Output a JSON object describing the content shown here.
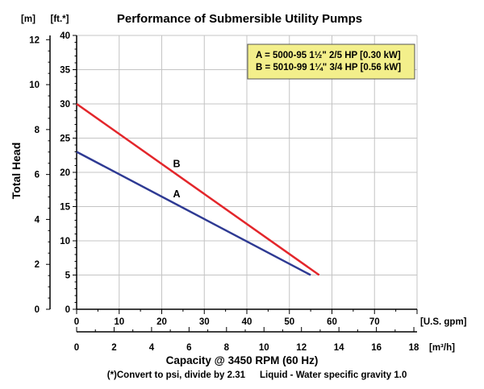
{
  "chart_data": {
    "type": "line",
    "title": "Performance of Submersible Utility Pumps",
    "ylabel": "Total Head",
    "xlabel": "Capacity @ 3450 RPM (60 Hz)",
    "y_unit": "[ft.*]",
    "y2_unit": "[m]",
    "x_unit": "[U.S. gpm]",
    "x2_unit": "[m³/h]",
    "xlim": [
      0,
      80
    ],
    "ylim": [
      0,
      40
    ],
    "x2lim": [
      0,
      18.17
    ],
    "y2lim": [
      0,
      12.19
    ],
    "x_ticks": [
      0,
      10,
      20,
      30,
      40,
      50,
      60,
      70
    ],
    "y_ticks": [
      0,
      5,
      10,
      15,
      20,
      25,
      30,
      35,
      40
    ],
    "x2_ticks": [
      0,
      2,
      4,
      6,
      8,
      10,
      12,
      14,
      16,
      18
    ],
    "y2_ticks": [
      0,
      2,
      4,
      6,
      8,
      10,
      12
    ],
    "grid": true,
    "grid_color": "#c4c4c4",
    "series": [
      {
        "name": "A",
        "color": "#2e3a93",
        "x": [
          0,
          55
        ],
        "y": [
          23,
          5
        ]
      },
      {
        "name": "B",
        "color": "#e3262b",
        "x": [
          0,
          57
        ],
        "y": [
          30,
          5
        ]
      }
    ],
    "legend": {
      "position": "top-right",
      "background": "#f3ef8b",
      "entries": [
        "A = 5000-95 1½\" 2/5 HP [0.30 kW]",
        "B = 5010-99 1¼\" 3/4 HP [0.56 kW]"
      ]
    },
    "footnote": [
      "(*)Convert to psi, divide by 2.31",
      "Liquid - Water specific gravity 1.0"
    ]
  }
}
